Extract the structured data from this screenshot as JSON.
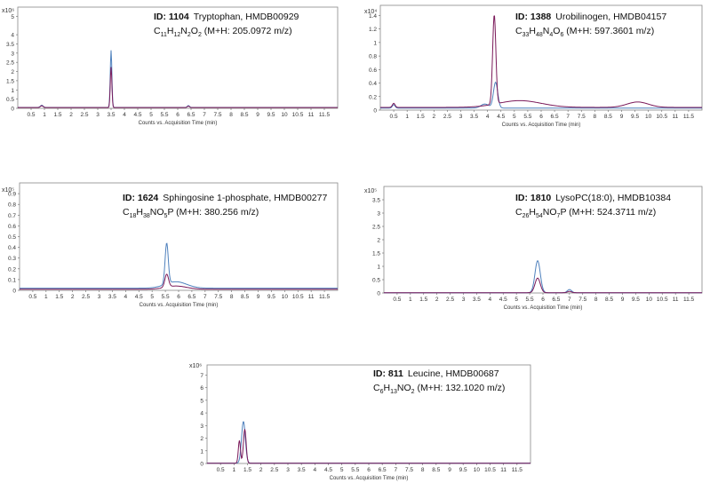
{
  "chart_data": [
    {
      "type": "line",
      "scale_label": "x10⁶",
      "id_label": "ID: 1104",
      "compound": "Tryptophan, HMDB00929",
      "formula": [
        {
          "t": "C",
          "sub": false
        },
        {
          "t": "11",
          "sub": true
        },
        {
          "t": "H",
          "sub": false
        },
        {
          "t": "12",
          "sub": true
        },
        {
          "t": "N",
          "sub": false
        },
        {
          "t": "2",
          "sub": true
        },
        {
          "t": "O",
          "sub": false
        },
        {
          "t": "2",
          "sub": true
        },
        {
          "t": " (M+H: 205.0972 m/z)",
          "sub": false
        }
      ],
      "xlabel": "Counts vs. Acquisition Time (min)",
      "xticks": [
        "0.5",
        "1",
        "1.5",
        "2",
        "2.5",
        "3",
        "3.5",
        "4",
        "4.5",
        "5",
        "5.5",
        "6",
        "6.5",
        "7",
        "7.5",
        "8",
        "8.5",
        "9",
        "9.5",
        "10",
        "10.5",
        "11",
        "11.5"
      ],
      "yticks": [
        "0",
        "0.5",
        "1",
        "1.5",
        "2",
        "2.5",
        "3",
        "3.5",
        "4",
        "5"
      ],
      "xlim": [
        0,
        12
      ],
      "ylim": [
        0,
        5.5
      ],
      "series": [
        {
          "color": "#4f81bd",
          "baseline": 0.05,
          "peaks": [
            {
              "x": 3.5,
              "h": 3.1,
              "w": 0.03
            },
            {
              "x": 0.9,
              "h": 0.12,
              "w": 0.05
            },
            {
              "x": 6.4,
              "h": 0.1,
              "w": 0.04
            }
          ]
        },
        {
          "color": "#7b1a5a",
          "baseline": 0.04,
          "peaks": [
            {
              "x": 3.5,
              "h": 2.2,
              "w": 0.03
            },
            {
              "x": 0.9,
              "h": 0.1,
              "w": 0.05
            },
            {
              "x": 6.4,
              "h": 0.08,
              "w": 0.04
            }
          ]
        }
      ]
    },
    {
      "type": "line",
      "scale_label": "x10⁴",
      "id_label": "ID: 1388",
      "compound": "Urobilinogen, HMDB04157",
      "formula": [
        {
          "t": "C",
          "sub": false
        },
        {
          "t": "33",
          "sub": true
        },
        {
          "t": "H",
          "sub": false
        },
        {
          "t": "48",
          "sub": true
        },
        {
          "t": "N",
          "sub": false
        },
        {
          "t": "4",
          "sub": true
        },
        {
          "t": "O",
          "sub": false
        },
        {
          "t": "6",
          "sub": true
        },
        {
          "t": " (M+H: 597.3601 m/z)",
          "sub": false
        }
      ],
      "xlabel": "Counts vs. Acquisition Time (min)",
      "xticks": [
        "0.5",
        "1",
        "1.5",
        "2",
        "2.5",
        "3",
        "3.5",
        "4",
        "4.5",
        "5",
        "5.5",
        "6",
        "6.5",
        "7",
        "7.5",
        "8",
        "8.5",
        "9",
        "9.5",
        "10",
        "10.5",
        "11",
        "11.5"
      ],
      "yticks": [
        "0",
        "0.2",
        "0.4",
        "0.6",
        "0.8",
        "1",
        "1.2",
        "1.4"
      ],
      "xlim": [
        0,
        12
      ],
      "ylim": [
        0,
        1.55
      ],
      "series": [
        {
          "color": "#4f81bd",
          "baseline": 0.03,
          "peaks": [
            {
              "x": 4.3,
              "h": 0.38,
              "w": 0.08
            },
            {
              "x": 3.9,
              "h": 0.06,
              "w": 0.15
            },
            {
              "x": 0.5,
              "h": 0.05,
              "w": 0.05
            }
          ]
        },
        {
          "color": "#7b1a5a",
          "baseline": 0.04,
          "peaks": [
            {
              "x": 4.25,
              "h": 1.32,
              "w": 0.06
            },
            {
              "x": 5.2,
              "h": 0.1,
              "w": 0.8
            },
            {
              "x": 9.6,
              "h": 0.08,
              "w": 0.4
            },
            {
              "x": 0.5,
              "h": 0.06,
              "w": 0.05
            }
          ]
        }
      ]
    },
    {
      "type": "line",
      "scale_label": "x10⁵",
      "id_label": "ID: 1624",
      "compound": "Sphingosine 1-phosphate, HMDB00277",
      "formula": [
        {
          "t": "C",
          "sub": false
        },
        {
          "t": "18",
          "sub": true
        },
        {
          "t": "H",
          "sub": false
        },
        {
          "t": "38",
          "sub": true
        },
        {
          "t": "NO",
          "sub": false
        },
        {
          "t": "5",
          "sub": true
        },
        {
          "t": "P (M+H: 380.256 m/z)",
          "sub": false
        }
      ],
      "xlabel": "Counts vs. Acquisition Time (min)",
      "xticks": [
        "0.5",
        "1",
        "1.5",
        "2",
        "2.5",
        "3",
        "3.5",
        "4",
        "4.5",
        "5",
        "5.5",
        "6",
        "6.5",
        "7",
        "7.5",
        "8",
        "8.5",
        "9",
        "9.5",
        "10",
        "10.5",
        "11",
        "11.5"
      ],
      "yticks": [
        "0",
        "0.1",
        "0.2",
        "0.3",
        "0.4",
        "0.5",
        "0.6",
        "0.7",
        "0.8",
        "0.9"
      ],
      "xlim": [
        0,
        12
      ],
      "ylim": [
        0,
        1.0
      ],
      "series": [
        {
          "color": "#4f81bd",
          "baseline": 0.02,
          "peaks": [
            {
              "x": 5.55,
              "h": 0.38,
              "w": 0.06
            },
            {
              "x": 5.9,
              "h": 0.06,
              "w": 0.4
            }
          ]
        },
        {
          "color": "#7b1a5a",
          "baseline": 0.01,
          "peaks": [
            {
              "x": 5.55,
              "h": 0.12,
              "w": 0.07
            },
            {
              "x": 5.9,
              "h": 0.03,
              "w": 0.4
            }
          ]
        }
      ]
    },
    {
      "type": "line",
      "scale_label": "x10⁵",
      "id_label": "ID: 1810",
      "compound": "LysoPC(18:0), HMDB10384",
      "formula": [
        {
          "t": "C",
          "sub": false
        },
        {
          "t": "26",
          "sub": true
        },
        {
          "t": "H",
          "sub": false
        },
        {
          "t": "54",
          "sub": true
        },
        {
          "t": "NO",
          "sub": false
        },
        {
          "t": "7",
          "sub": true
        },
        {
          "t": "P (M+H: 524.3711 m/z)",
          "sub": false
        }
      ],
      "xlabel": "Counts vs. Acquisition Time (min)",
      "xticks": [
        "0.5",
        "1",
        "1.5",
        "2",
        "2.5",
        "3",
        "3.5",
        "4",
        "4.5",
        "5",
        "5.5",
        "6",
        "6.5",
        "7",
        "7.5",
        "8",
        "8.5",
        "9",
        "9.5",
        "10",
        "10.5",
        "11",
        "11.5"
      ],
      "yticks": [
        "0",
        "0.5",
        "1",
        "1.5",
        "2",
        "2.5",
        "3",
        "3.5"
      ],
      "xlim": [
        0,
        12
      ],
      "ylim": [
        0,
        4.0
      ],
      "series": [
        {
          "color": "#4f81bd",
          "baseline": 0.01,
          "peaks": [
            {
              "x": 5.8,
              "h": 1.2,
              "w": 0.1
            },
            {
              "x": 7.0,
              "h": 0.12,
              "w": 0.08
            }
          ]
        },
        {
          "color": "#7b1a5a",
          "baseline": 0.01,
          "peaks": [
            {
              "x": 5.8,
              "h": 0.55,
              "w": 0.1
            },
            {
              "x": 7.0,
              "h": 0.05,
              "w": 0.08
            }
          ]
        }
      ]
    },
    {
      "type": "line",
      "scale_label": "x10⁶",
      "id_label": "ID: 811",
      "compound": "Leucine, HMDB00687",
      "formula": [
        {
          "t": "C",
          "sub": false
        },
        {
          "t": "6",
          "sub": true
        },
        {
          "t": "H",
          "sub": false
        },
        {
          "t": "13",
          "sub": true
        },
        {
          "t": "NO",
          "sub": false
        },
        {
          "t": "2",
          "sub": true
        },
        {
          "t": " (M+H: 132.1020 m/z)",
          "sub": false
        }
      ],
      "xlabel": "Counts vs. Acquisition Time (min)",
      "xticks": [
        "0.5",
        "1",
        "1.5",
        "2",
        "2.5",
        "3",
        "3.5",
        "4",
        "4.5",
        "5",
        "5.5",
        "6",
        "6.5",
        "7",
        "7.5",
        "8",
        "8.5",
        "9",
        "9.5",
        "10",
        "10.5",
        "11",
        "11.5"
      ],
      "yticks": [
        "0",
        "1",
        "2",
        "3",
        "4",
        "5",
        "6",
        "7"
      ],
      "xlim": [
        0,
        12
      ],
      "ylim": [
        0,
        7.8
      ],
      "series": [
        {
          "color": "#4f81bd",
          "baseline": 0.03,
          "peaks": [
            {
              "x": 1.35,
              "h": 3.3,
              "w": 0.07
            }
          ]
        },
        {
          "color": "#7b1a5a",
          "baseline": 0.02,
          "peaks": [
            {
              "x": 1.2,
              "h": 1.8,
              "w": 0.04
            },
            {
              "x": 1.4,
              "h": 2.7,
              "w": 0.05
            }
          ]
        }
      ]
    }
  ]
}
